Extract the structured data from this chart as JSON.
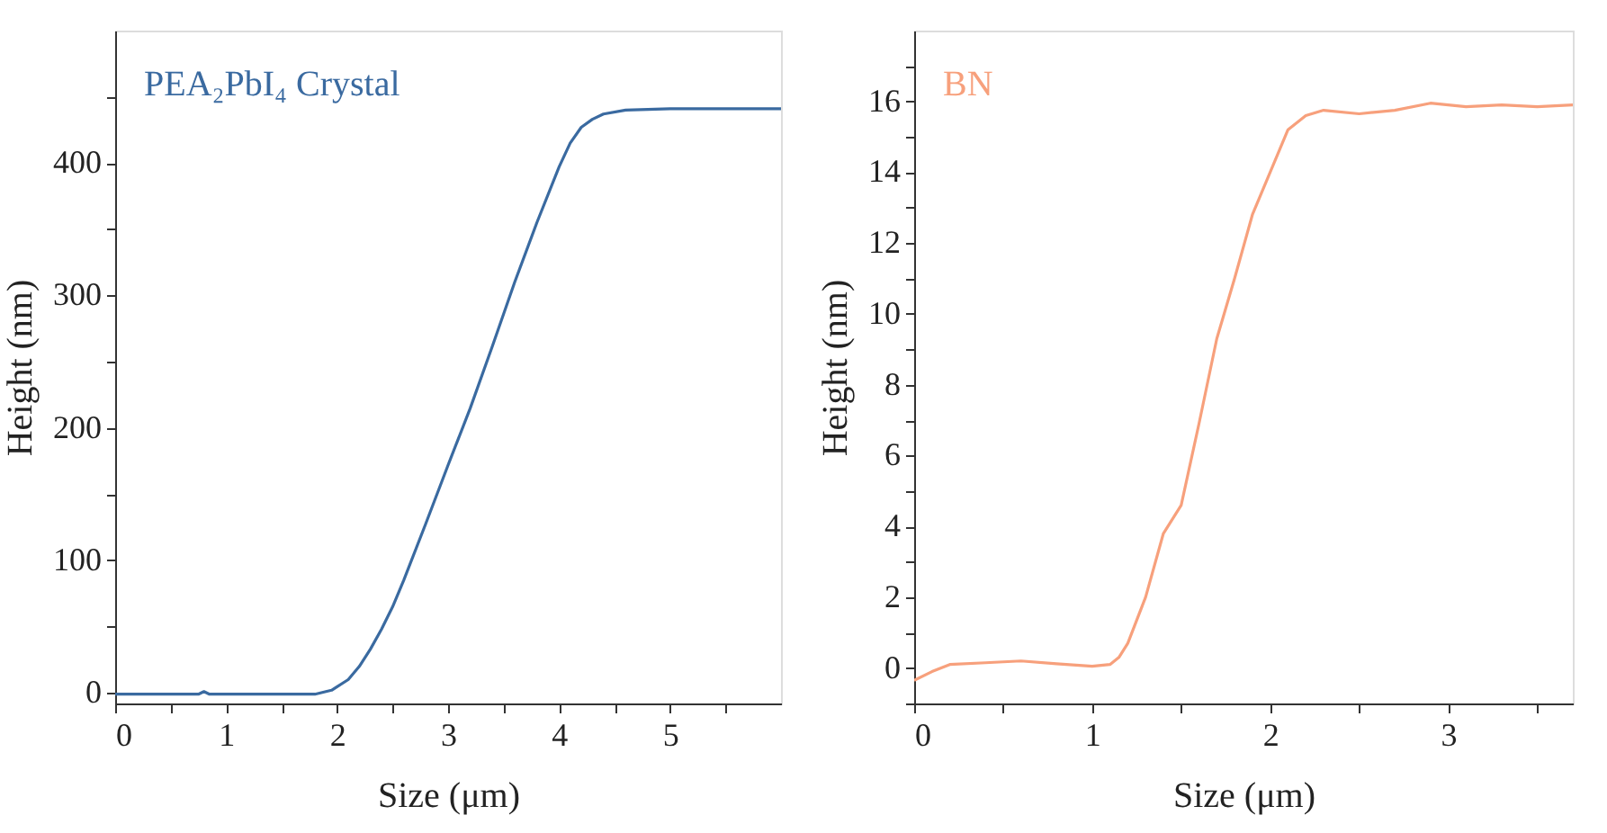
{
  "chart_data": [
    {
      "type": "line",
      "xlabel": "Size (μm)",
      "ylabel": "Height (nm)",
      "annotations": [
        "PEA₂PbI₄ Crystal"
      ],
      "xlim": [
        0,
        6
      ],
      "ylim": [
        -8,
        500
      ],
      "xticks": [
        0,
        {
          "value": 0.5,
          "label": null
        },
        1,
        {
          "value": 1.5,
          "label": null
        },
        2,
        {
          "value": 2.5,
          "label": null
        },
        3,
        {
          "value": 3.5,
          "label": null
        },
        4,
        {
          "value": 4.5,
          "label": null
        },
        5,
        {
          "value": 5.5,
          "label": null
        }
      ],
      "yticks": [
        0,
        {
          "value": 50,
          "label": null
        },
        100,
        {
          "value": 150,
          "label": null
        },
        200,
        {
          "value": 250,
          "label": null
        },
        300,
        {
          "value": 350,
          "label": null
        },
        400,
        {
          "value": 450,
          "label": null
        }
      ],
      "grid": false,
      "series": [
        {
          "color": "#3a6aa0",
          "x": [
            0,
            0.75,
            0.8,
            0.85,
            1.8,
            1.95,
            2.1,
            2.2,
            2.3,
            2.4,
            2.5,
            2.6,
            2.8,
            3.0,
            3.2,
            3.4,
            3.6,
            3.8,
            4.0,
            4.1,
            4.2,
            4.3,
            4.4,
            4.6,
            5.0,
            6.0
          ],
          "values": [
            -1,
            -1,
            1,
            -1,
            -1,
            2,
            10,
            20,
            33,
            48,
            65,
            85,
            128,
            172,
            215,
            262,
            310,
            355,
            397,
            415,
            427,
            433,
            437,
            440,
            441,
            441
          ]
        }
      ]
    },
    {
      "type": "line",
      "xlabel": "Size (μm)",
      "ylabel": "Height (nm)",
      "annotations": [
        "BN"
      ],
      "xlim": [
        0,
        3.7
      ],
      "ylim": [
        -1,
        18
      ],
      "xticks": [
        0,
        {
          "value": 0.5,
          "label": null
        },
        1,
        {
          "value": 1.5,
          "label": null
        },
        2,
        {
          "value": 2.5,
          "label": null
        },
        3,
        {
          "value": 3.5,
          "label": null
        }
      ],
      "yticks": [
        {
          "value": -1,
          "label": null
        },
        0,
        {
          "value": 1,
          "label": null
        },
        2,
        {
          "value": 3,
          "label": null
        },
        4,
        {
          "value": 5,
          "label": null
        },
        6,
        {
          "value": 7,
          "label": null
        },
        8,
        {
          "value": 9,
          "label": null
        },
        10,
        {
          "value": 11,
          "label": null
        },
        12,
        {
          "value": 13,
          "label": null
        },
        14,
        {
          "value": 15,
          "label": null
        },
        16,
        {
          "value": 17,
          "label": null
        }
      ],
      "grid": false,
      "series": [
        {
          "color": "#f7a07c",
          "x": [
            0,
            0.1,
            0.2,
            0.4,
            0.6,
            0.8,
            1.0,
            1.1,
            1.15,
            1.2,
            1.3,
            1.4,
            1.5,
            1.6,
            1.7,
            1.8,
            1.9,
            2.0,
            2.1,
            2.2,
            2.3,
            2.5,
            2.7,
            2.9,
            3.1,
            3.3,
            3.5,
            3.7
          ],
          "values": [
            -0.35,
            -0.1,
            0.1,
            0.15,
            0.2,
            0.12,
            0.05,
            0.1,
            0.3,
            0.7,
            2.0,
            3.8,
            4.6,
            6.9,
            9.3,
            11.0,
            12.8,
            14.0,
            15.2,
            15.6,
            15.75,
            15.65,
            15.75,
            15.95,
            15.85,
            15.9,
            15.85,
            15.9
          ]
        }
      ]
    }
  ]
}
